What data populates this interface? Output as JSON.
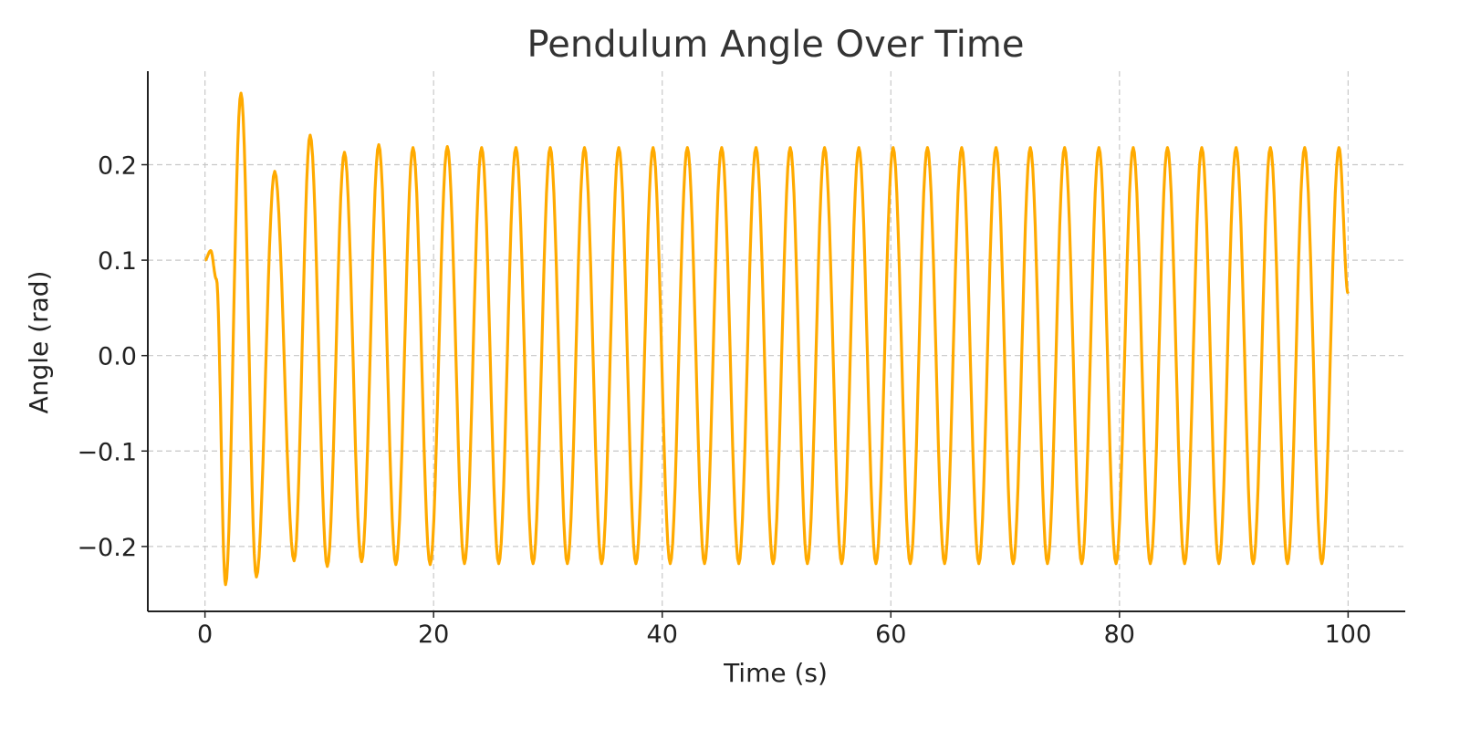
{
  "chart_data": {
    "type": "line",
    "title": "Pendulum Angle Over Time",
    "xlabel": "Time (s)",
    "ylabel": "Angle (rad)",
    "xlim": [
      -5,
      105
    ],
    "ylim": [
      -0.268,
      0.298
    ],
    "xticks": [
      0,
      20,
      40,
      60,
      80,
      100
    ],
    "xtick_labels": [
      "0",
      "20",
      "40",
      "60",
      "80",
      "100"
    ],
    "yticks": [
      0.2,
      0.1,
      0.0,
      -0.1,
      -0.2
    ],
    "ytick_labels": [
      "0.2",
      "0.1",
      "0.0",
      "−0.1",
      "−0.2"
    ],
    "grid": true,
    "legend": "none",
    "line_color": "#FFAA00",
    "series": [
      {
        "x": [
          0,
          0.5,
          1.0,
          1.8,
          3.15,
          4.5,
          6.1,
          7.8,
          9.2,
          10.7,
          12.2,
          13.7,
          15.2,
          16.7,
          18.2,
          19.7,
          21.2,
          22.7,
          24.2,
          25.7,
          27.2,
          28.7,
          30.2,
          31.7,
          33.2,
          34.7,
          36.2,
          37.7,
          39.2,
          40.7,
          42.2,
          43.7,
          45.2,
          46.7,
          48.2,
          49.7,
          51.2,
          52.7,
          54.2,
          55.7,
          57.2,
          58.7,
          60.2,
          61.7,
          63.2,
          64.7,
          66.2,
          67.7,
          69.2,
          70.7,
          72.2,
          73.7,
          75.2,
          76.7,
          78.2,
          79.7,
          81.2,
          82.7,
          84.2,
          85.7,
          87.2,
          88.7,
          90.2,
          91.7,
          93.2,
          94.7,
          96.2,
          97.7,
          99.2,
          100
        ],
        "y": [
          0.1,
          0.11,
          0.08,
          -0.24,
          0.275,
          -0.232,
          0.193,
          -0.215,
          0.231,
          -0.221,
          0.213,
          -0.216,
          0.221,
          -0.219,
          0.218,
          -0.219,
          0.219,
          -0.218,
          0.218,
          -0.218,
          0.218,
          -0.218,
          0.218,
          -0.218,
          0.218,
          -0.218,
          0.218,
          -0.218,
          0.218,
          -0.218,
          0.218,
          -0.218,
          0.218,
          -0.218,
          0.218,
          -0.218,
          0.218,
          -0.218,
          0.218,
          -0.218,
          0.218,
          -0.218,
          0.218,
          -0.218,
          0.218,
          -0.218,
          0.218,
          -0.218,
          0.218,
          -0.218,
          0.218,
          -0.218,
          0.218,
          -0.218,
          0.218,
          -0.218,
          0.218,
          -0.218,
          0.218,
          -0.218,
          0.218,
          -0.218,
          0.218,
          -0.218,
          0.218,
          -0.218,
          0.218,
          -0.218,
          0.218,
          0.065
        ]
      }
    ]
  }
}
